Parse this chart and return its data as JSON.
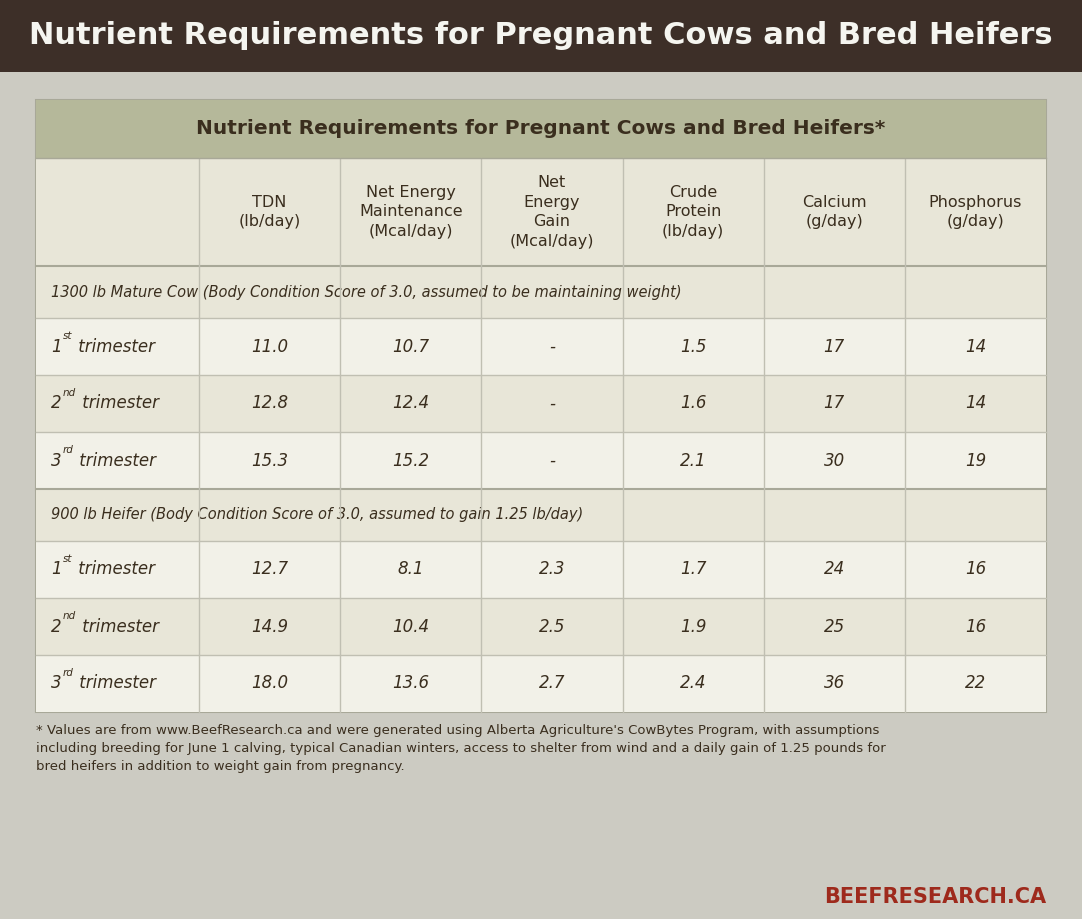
{
  "title_banner": "Nutrient Requirements for Pregnant Cows and Bred Heifers",
  "title_banner_bg": "#3d2f28",
  "title_banner_fg": "#f5f5f0",
  "table_title": "Nutrient Requirements for Pregnant Cows and Bred Heifers*",
  "table_title_bg": "#b5b89a",
  "table_bg": "#e8e6d8",
  "outer_bg": "#cccbc2",
  "row_alt_bg": "#f2f1e8",
  "col_headers": [
    "TDN\n(lb/day)",
    "Net Energy\nMaintenance\n(Mcal/day)",
    "Net\nEnergy\nGain\n(Mcal/day)",
    "Crude\nProtein\n(lb/day)",
    "Calcium\n(g/day)",
    "Phosphorus\n(g/day)"
  ],
  "section1_label": "1300 lb Mature Cow (Body Condition Score of 3.0, assumed to be maintaining weight)",
  "section2_label": "900 lb Heifer (Body Condition Score of 3.0, assumed to gain 1.25 lb/day)",
  "rows": [
    [
      "1",
      "st",
      " trimester",
      "11.0",
      "10.7",
      "-",
      "1.5",
      "17",
      "14"
    ],
    [
      "2",
      "nd",
      " trimester",
      "12.8",
      "12.4",
      "-",
      "1.6",
      "17",
      "14"
    ],
    [
      "3",
      "rd",
      " trimester",
      "15.3",
      "15.2",
      "-",
      "2.1",
      "30",
      "19"
    ],
    [
      "1",
      "st",
      " trimester",
      "12.7",
      "8.1",
      "2.3",
      "1.7",
      "24",
      "16"
    ],
    [
      "2",
      "nd",
      " trimester",
      "14.9",
      "10.4",
      "2.5",
      "1.9",
      "25",
      "16"
    ],
    [
      "3",
      "rd",
      " trimester",
      "18.0",
      "13.6",
      "2.7",
      "2.4",
      "36",
      "22"
    ]
  ],
  "footnote": "* Values are from www.BeefResearch.ca and were generated using Alberta Agriculture's CowBytes Program, with assumptions\nincluding breeding for June 1 calving, typical Canadian winters, access to shelter from wind and a daily gain of 1.25 pounds for\nbred heifers in addition to weight gain from pregnancy.",
  "watermark": "BEEFRESEARCH.CA",
  "watermark_color": "#9e2a1c",
  "text_color": "#3a2e1e",
  "border_color": "#a8a898",
  "divider_color": "#c0bfb2"
}
